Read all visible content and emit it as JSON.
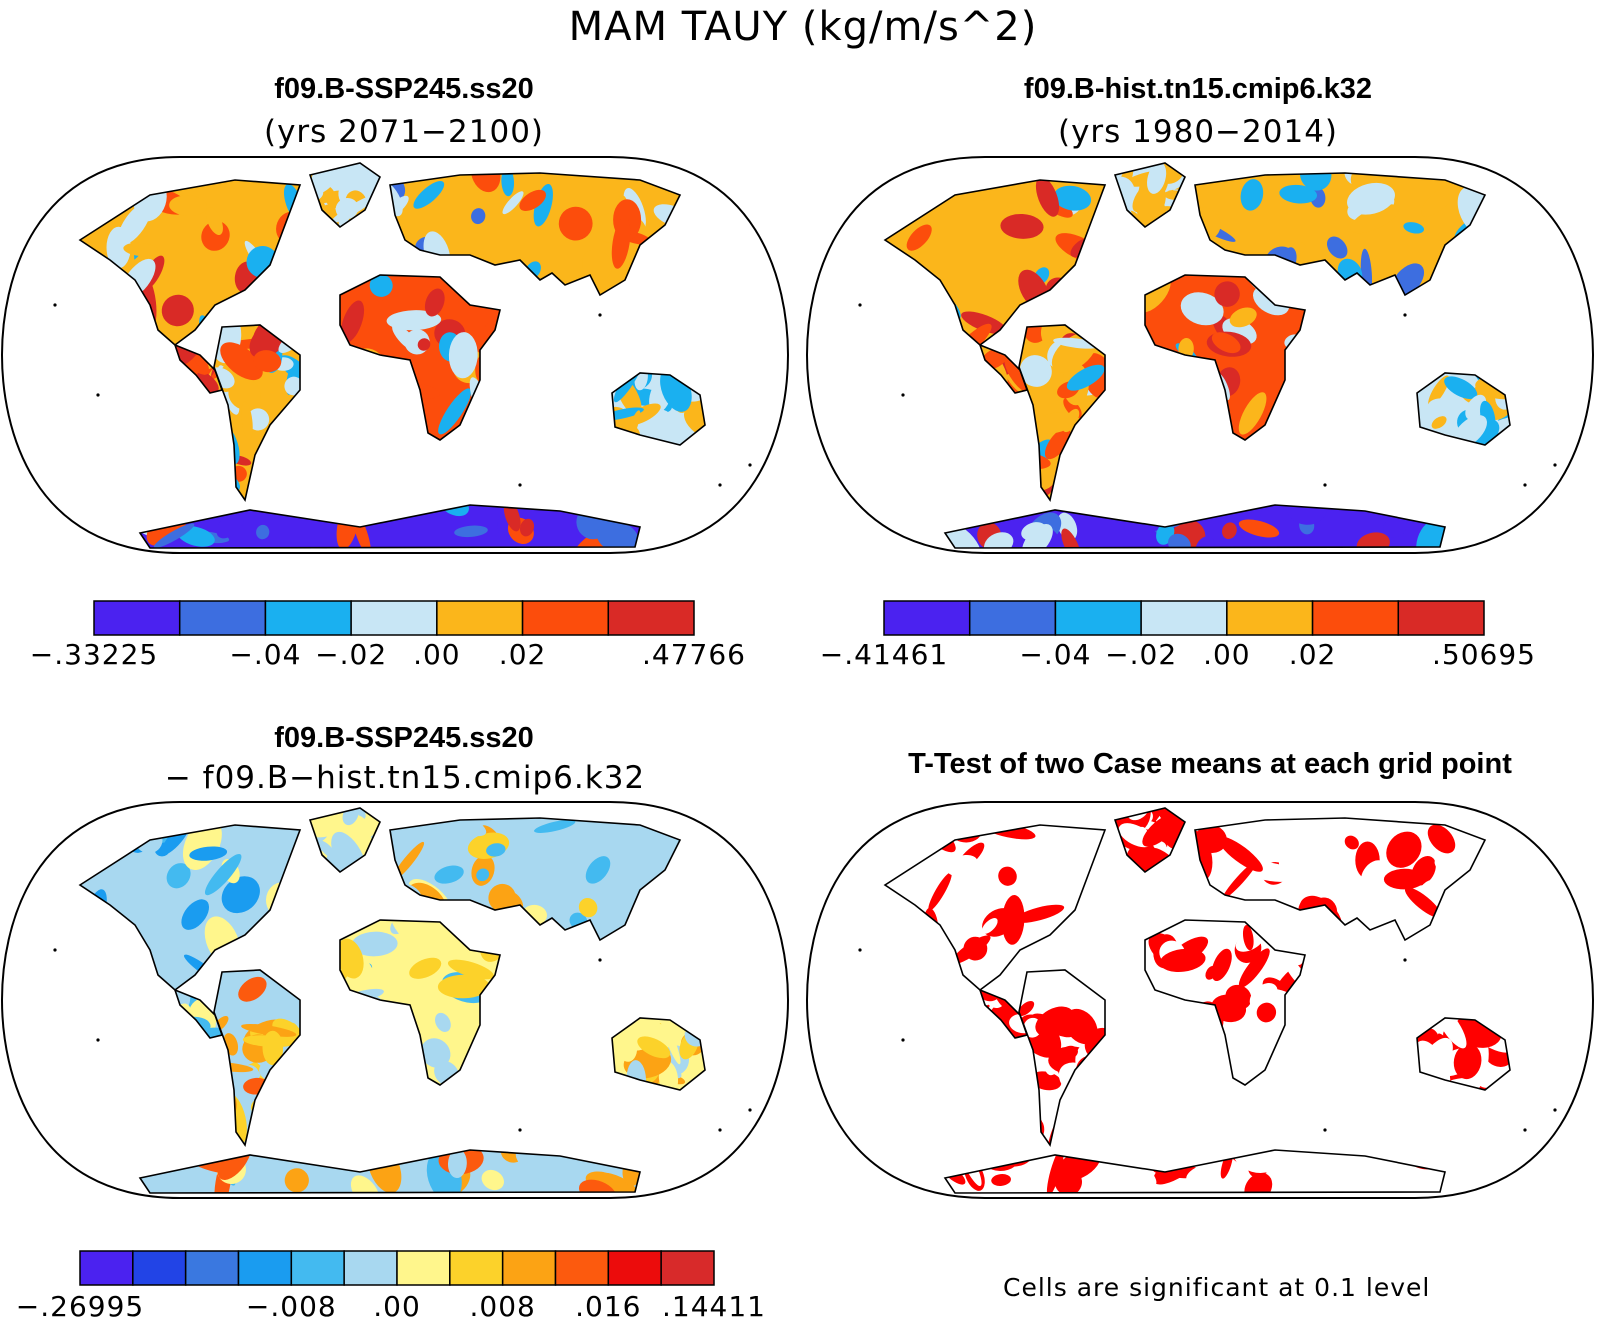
{
  "main_title": "MAM TAUY (kg/m/s^2)",
  "chart_data": [
    {
      "type": "heatmap",
      "title": "f09.B-SSP245.ss20",
      "subtitle": "(yrs 2071−2100)",
      "projection": "Robinson world map",
      "colorbar": {
        "colors": [
          "#4b22f0",
          "#3d6ee0",
          "#1ab0f0",
          "#c8e6f5",
          "#fbb61b",
          "#fc4d0c",
          "#d92a26"
        ],
        "tick_labels": [
          "−.33225",
          "−.04",
          "−.02",
          ".00",
          ".02",
          ".47766"
        ],
        "boundaries": [
          -0.33225,
          -0.06,
          -0.04,
          -0.02,
          0.0,
          0.02,
          0.04,
          0.47766
        ]
      }
    },
    {
      "type": "heatmap",
      "title": "f09.B-hist.tn15.cmip6.k32",
      "subtitle": "(yrs 1980−2014)",
      "projection": "Robinson world map",
      "colorbar": {
        "colors": [
          "#4b22f0",
          "#3d6ee0",
          "#1ab0f0",
          "#c8e6f5",
          "#fbb61b",
          "#fc4d0c",
          "#d92a26"
        ],
        "tick_labels": [
          "−.41461",
          "−.04",
          "−.02",
          ".00",
          ".02",
          ".50695"
        ],
        "boundaries": [
          -0.41461,
          -0.06,
          -0.04,
          -0.02,
          0.0,
          0.02,
          0.04,
          0.50695
        ]
      }
    },
    {
      "type": "heatmap",
      "title": "f09.B-SSP245.ss20",
      "subtitle": "− f09.B−hist.tn15.cmip6.k32",
      "projection": "Robinson world map",
      "colorbar": {
        "colors": [
          "#4b22f0",
          "#2244e6",
          "#3a78e0",
          "#1a9cf0",
          "#43baf0",
          "#a8d8f0",
          "#fff68c",
          "#fcd22a",
          "#fca314",
          "#fc5a0e",
          "#ec0c0c",
          "#d82a2a"
        ],
        "tick_labels": [
          "−.26995",
          "−.008",
          ".00",
          ".008",
          ".016",
          ".14411"
        ],
        "boundaries": [
          -0.26995,
          -0.02,
          -0.016,
          -0.012,
          -0.008,
          -0.004,
          0.0,
          0.004,
          0.008,
          0.012,
          0.016,
          0.02,
          0.14411
        ]
      }
    },
    {
      "type": "heatmap",
      "title": "T-Test of two Case means at each grid point",
      "projection": "Robinson world map",
      "significance_color": "#ff0000",
      "footnote": "Cells are significant at 0.1 level"
    }
  ]
}
